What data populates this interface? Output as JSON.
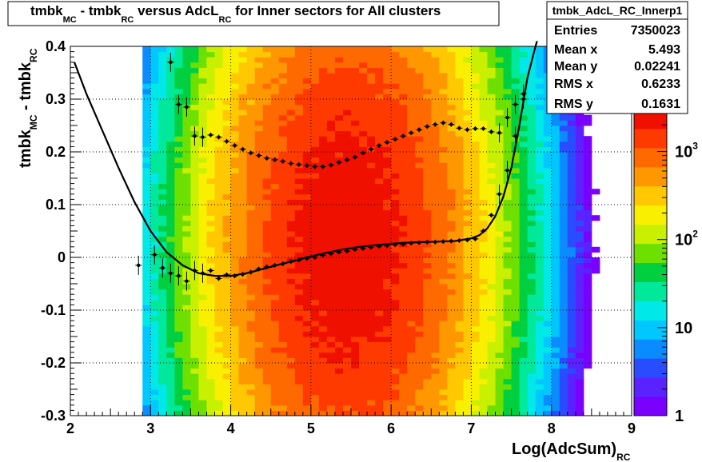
{
  "title": {
    "parts": [
      "tmbk",
      "MC",
      " - tmbk",
      "RC",
      " versus AdcL",
      "RC",
      " for Inner sectors for All clusters"
    ]
  },
  "stats": {
    "name": "tmbk_AdcL_RC_Innerp1",
    "rows": [
      {
        "key": "Entries",
        "value": "7350023"
      },
      {
        "key": "Mean x",
        "value": "5.493"
      },
      {
        "key": "Mean y",
        "value": "0.02241"
      },
      {
        "key": "RMS x",
        "value": "0.6233"
      },
      {
        "key": "RMS y",
        "value": "0.1631"
      }
    ]
  },
  "colors": {
    "palette": [
      "#7a00ff",
      "#5a22ff",
      "#2a4cff",
      "#0a8cff",
      "#00c8ff",
      "#00e8e8",
      "#00e89a",
      "#00d040",
      "#6ee000",
      "#c8f000",
      "#f8f000",
      "#ffc800",
      "#ff9800",
      "#ff6a00",
      "#ff3a00",
      "#f01000"
    ],
    "frame": "#000000",
    "grid": "#000000"
  },
  "chart_data": {
    "type": "heatmap",
    "title": "tmbk_MC - tmbk_RC versus AdcL_RC for Inner sectors for All clusters",
    "xlabel_main": "Log(AdcSum)",
    "xlabel_sub": "RC",
    "ylabel_main": "tmbk",
    "ylabel_sub1": "MC",
    "ylabel_mid": " - tmbk",
    "ylabel_sub2": "RC",
    "xlim": [
      2,
      9
    ],
    "ylim": [
      -0.3,
      0.4
    ],
    "xticks": [
      2,
      3,
      4,
      5,
      6,
      7,
      8,
      9
    ],
    "yticks": [
      -0.3,
      -0.2,
      -0.1,
      0,
      0.1,
      0.2,
      0.3,
      0.4
    ],
    "ytick_labels": [
      "-0.3",
      "-0.2",
      "-0.1",
      "0",
      "0.1",
      "0.2",
      "0.3",
      "0.4"
    ],
    "grid": true,
    "logz": true,
    "zlim": [
      1,
      3000
    ],
    "zticks": [
      {
        "value": 1,
        "base": "1",
        "exp": ""
      },
      {
        "value": 10,
        "base": "10",
        "exp": ""
      },
      {
        "value": 100,
        "base": "10",
        "exp": "2"
      },
      {
        "value": 1000,
        "base": "10",
        "exp": "3"
      }
    ],
    "density": {
      "x_center": 5.45,
      "y_center": 0.03,
      "x_sigma": 0.78,
      "y_sigma": 0.19,
      "peak": 2600,
      "x_min": 2.9,
      "x_max": 8.95
    },
    "profile_upper": {
      "x": [
        3.25,
        3.35,
        3.45,
        3.55,
        3.65,
        3.75,
        3.85,
        3.95,
        4.05,
        4.15,
        4.25,
        4.35,
        4.45,
        4.55,
        4.65,
        4.75,
        4.85,
        4.95,
        5.05,
        5.15,
        5.25,
        5.35,
        5.45,
        5.55,
        5.65,
        5.75,
        5.85,
        5.95,
        6.05,
        6.15,
        6.25,
        6.35,
        6.45,
        6.55,
        6.65,
        6.75,
        6.85,
        6.95,
        7.05,
        7.15,
        7.25,
        7.35,
        7.45,
        7.55,
        7.65
      ],
      "y": [
        0.37,
        0.29,
        0.285,
        0.23,
        0.228,
        0.232,
        0.228,
        0.22,
        0.212,
        0.205,
        0.198,
        0.193,
        0.188,
        0.185,
        0.182,
        0.178,
        0.176,
        0.174,
        0.172,
        0.172,
        0.175,
        0.18,
        0.185,
        0.19,
        0.198,
        0.205,
        0.212,
        0.218,
        0.224,
        0.23,
        0.236,
        0.242,
        0.248,
        0.252,
        0.255,
        0.252,
        0.245,
        0.242,
        0.244,
        0.244,
        0.238,
        0.236,
        0.265,
        0.29,
        0.31
      ]
    },
    "profile_lower": {
      "x": [
        2.85,
        3.05,
        3.15,
        3.25,
        3.35,
        3.45,
        3.55,
        3.65,
        3.75,
        3.85,
        3.95,
        4.05,
        4.15,
        4.25,
        4.35,
        4.45,
        4.55,
        4.65,
        4.75,
        4.85,
        4.95,
        5.05,
        5.15,
        5.25,
        5.35,
        5.45,
        5.55,
        5.65,
        5.75,
        5.85,
        5.95,
        6.05,
        6.15,
        6.25,
        6.35,
        6.45,
        6.55,
        6.65,
        6.75,
        6.85,
        6.95,
        7.05,
        7.15,
        7.25,
        7.35,
        7.45,
        7.55,
        7.65
      ],
      "y": [
        -0.015,
        0.005,
        -0.02,
        -0.03,
        -0.035,
        -0.045,
        -0.025,
        -0.03,
        -0.025,
        -0.04,
        -0.033,
        -0.035,
        -0.032,
        -0.028,
        -0.022,
        -0.018,
        -0.015,
        -0.012,
        -0.008,
        -0.005,
        -0.002,
        0.0,
        0.004,
        0.007,
        0.01,
        0.012,
        0.015,
        0.017,
        0.019,
        0.021,
        0.022,
        0.024,
        0.025,
        0.027,
        0.028,
        0.029,
        0.029,
        0.03,
        0.031,
        0.032,
        0.033,
        0.035,
        0.05,
        0.08,
        0.12,
        0.165,
        0.23,
        0.3
      ]
    },
    "fit_curve": {
      "x": [
        2.05,
        2.2,
        2.4,
        2.6,
        2.8,
        3.0,
        3.2,
        3.4,
        3.6,
        3.8,
        4.0,
        4.2,
        4.4,
        4.6,
        4.8,
        5.0,
        5.2,
        5.4,
        5.6,
        5.8,
        6.0,
        6.2,
        6.4,
        6.6,
        6.8,
        7.0,
        7.1,
        7.2,
        7.3,
        7.4,
        7.5,
        7.6,
        7.7,
        7.8,
        7.82
      ],
      "y": [
        0.37,
        0.31,
        0.24,
        0.17,
        0.105,
        0.05,
        0.01,
        -0.015,
        -0.03,
        -0.035,
        -0.035,
        -0.03,
        -0.022,
        -0.014,
        -0.006,
        0.002,
        0.009,
        0.015,
        0.02,
        0.023,
        0.026,
        0.028,
        0.029,
        0.03,
        0.031,
        0.036,
        0.042,
        0.055,
        0.078,
        0.115,
        0.17,
        0.25,
        0.34,
        0.4,
        0.41
      ]
    }
  }
}
